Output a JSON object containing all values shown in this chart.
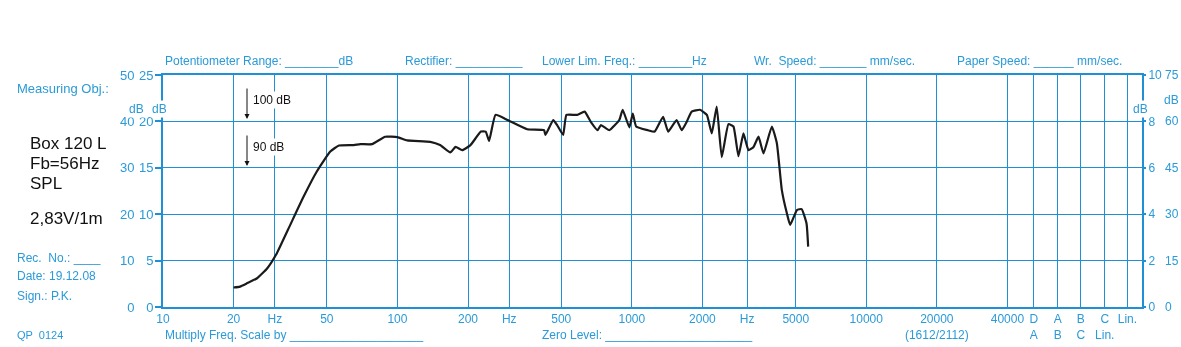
{
  "chart_data": {
    "type": "line",
    "xlabel": null,
    "annotations": [
      "Measuring Obj.:",
      "Box 120 L",
      "Fb=56Hz",
      "SPL",
      "2,83V/1m",
      "Rec.  No.: ____",
      "Date: 19.12.08",
      "Sign.: P.K.",
      "QP  0124",
      "Potentiometer Range: ________dB",
      "Rectifier: __________",
      "Lower Lim. Freq.: ________Hz",
      "Wr.  Speed: _______ mm/sec.",
      "Paper Speed: ______ mm/sec.",
      "Multiply Freq. Scale by ____________________",
      "Zero Level: ______________________",
      "100 dB",
      "90 dB",
      "dB",
      "0",
      "15",
      "30",
      "45",
      "60",
      "75"
    ],
    "x": [
      20,
      21.3,
      22.8,
      25.2,
      27.8,
      30.6,
      34.9,
      39.8,
      45.3,
      51.7,
      56.3,
      65.1,
      69.4,
      77.9,
      88.7,
      100,
      110,
      138,
      152,
      168,
      177,
      189,
      205,
      227,
      238,
      246,
      262,
      295,
      358,
      422,
      428,
      462,
      480,
      509,
      526,
      585,
      629,
      668,
      714,
      738,
      801,
      884,
      914,
      976,
      1009,
      1043,
      1171,
      1251,
      1359,
      1428,
      1552,
      1631,
      1713,
      1800,
      1953,
      2089,
      2192,
      2301,
      2418,
      2582,
      2712,
      2849,
      2992,
      3144,
      3303,
      3469,
      3644,
      3954,
      4154,
      4363,
      4584,
      4735,
      5060,
      5300,
      5560,
      5650
    ],
    "series": [
      {
        "color": "#1a1a1a",
        "values": [
          4.2,
          4.4,
          5.1,
          6.2,
          8.3,
          11.6,
          17.7,
          23.8,
          29.2,
          33.5,
          34.8,
          34.9,
          35.1,
          35.1,
          36.7,
          36.6,
          35.9,
          35.6,
          34.9,
          33.3,
          34.5,
          33.8,
          34.9,
          37.8,
          37.8,
          35.8,
          41.4,
          40.3,
          38.3,
          38.1,
          37.1,
          40.3,
          39.2,
          37.1,
          41.4,
          41.4,
          42.1,
          39.9,
          38.1,
          39.2,
          38.1,
          40.3,
          42.5,
          38.7,
          41.7,
          38.9,
          38.1,
          37.8,
          41,
          37.8,
          40.3,
          38.1,
          39.9,
          42.1,
          42.5,
          41.4,
          37.4,
          43.2,
          32.3,
          39.4,
          38.9,
          32.5,
          37.4,
          33.8,
          34.5,
          36.7,
          33.1,
          38.9,
          35.3,
          25.2,
          20.2,
          17.7,
          20.9,
          21.1,
          18,
          13
        ]
      }
    ],
    "log": "x",
    "xlim": [
      10,
      150000
    ],
    "xticks": [
      10,
      20,
      {
        "value": 30,
        "label": "Hz"
      },
      50,
      100,
      200,
      {
        "value": 300,
        "label": "Hz"
      },
      500,
      1000,
      2000,
      {
        "value": 3100,
        "label": "Hz"
      },
      5000,
      10000,
      {
        "value": 20000,
        "label": "20000\n(1612/2112)"
      },
      40000,
      {
        "value": 51800,
        "label": "D\nA"
      },
      {
        "value": 65500,
        "label": "A\nB"
      },
      {
        "value": 82200,
        "label": "B\nC"
      },
      {
        "value": 104000,
        "label": "C\nLin."
      },
      {
        "value": 130000,
        "label": "Lin."
      }
    ],
    "ylim": [
      0,
      50
    ],
    "yticks": [
      0,
      10,
      20,
      30,
      40,
      50
    ],
    "ylabel": "dB",
    "y2lim": [
      0,
      25
    ],
    "y2ticks": [
      0,
      5,
      10,
      15,
      20,
      25
    ],
    "y2label": "dB",
    "y3lim": [
      0,
      10
    ],
    "y3ticks": [
      0,
      2,
      4,
      6,
      8,
      10
    ],
    "y3label": "dB",
    "grid": true,
    "marker": "none",
    "line_style": "solid"
  }
}
